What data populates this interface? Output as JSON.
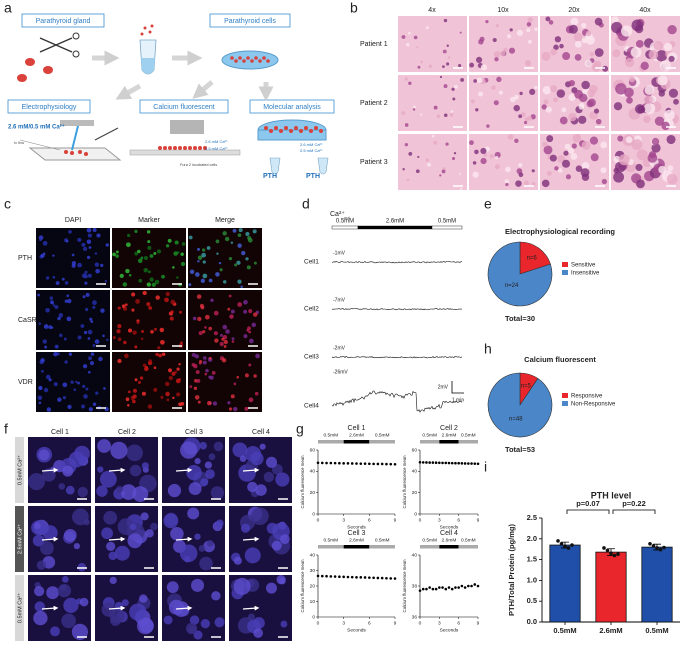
{
  "panels": {
    "a": {
      "letter": "a",
      "boxes": [
        "Parathyroid gland",
        "Parathyroid cells",
        "Electrophysiology",
        "Calcium fluorescent",
        "Molecular analysis"
      ],
      "protocol": "2.6 mM/0.5 mM Ca²⁺",
      "flow": "to flow",
      "calcium_conc": [
        "2.6 mM Ca²⁺",
        "0.5 mM Ca²⁺"
      ],
      "molecular_conc": [
        "2.6 mM Ca²⁺",
        "0.5 mM Ca²⁺"
      ],
      "cells_note": "Fura 2 incubated cells",
      "tubes": [
        "PTH",
        "PTH"
      ]
    },
    "b": {
      "letter": "b",
      "columns": [
        "4x",
        "10x",
        "20x",
        "40x"
      ],
      "rows": [
        "Patient 1",
        "Patient 2",
        "Patient 3"
      ]
    },
    "c": {
      "letter": "c",
      "columns": [
        "DAPI",
        "Marker",
        "Merge"
      ],
      "rows": [
        "PTH",
        "CaSR",
        "VDR"
      ]
    },
    "d": {
      "letter": "d",
      "stimulus_ion": "Ca²⁺",
      "stimulus_sub": "out",
      "stimulus": [
        "0.5mM",
        "2.6mM",
        "0.5mM"
      ],
      "cells": [
        "Cell1",
        "Cell2",
        "Cell3",
        "Cell4"
      ],
      "potentials": [
        "-1mV",
        "-7mV",
        "-2mV",
        "-26mV"
      ],
      "scale_v": "2mV",
      "scale_t": "1 min"
    },
    "e": {
      "letter": "e"
    },
    "h": {
      "letter": "h"
    },
    "f": {
      "letter": "f",
      "columns": [
        "Cell 1",
        "Cell 2",
        "Cell 3",
        "Cell 4"
      ],
      "rows": [
        "0.5mM Ca²⁺",
        "2.6mM Ca²⁺",
        "0.5mM Ca²⁺"
      ]
    },
    "g": {
      "letter": "g"
    },
    "i": {
      "letter": "i"
    }
  },
  "chart_data": [
    {
      "type": "pie",
      "title": "Electrophysiological recording",
      "categories": [
        "Sensitive",
        "Insensitive"
      ],
      "values": [
        6,
        24
      ],
      "value_labels": [
        "n=6",
        "n=24"
      ],
      "colors": [
        "#e8262b",
        "#4a86c8"
      ],
      "annotation": "Total=30",
      "legend": "upper right"
    },
    {
      "type": "pie",
      "title": "Calcium fluorescent",
      "categories": [
        "Responsive",
        "Non-Responsive"
      ],
      "values": [
        5,
        48
      ],
      "value_labels": [
        "n=5",
        "n=48"
      ],
      "colors": [
        "#e8262b",
        "#4a86c8"
      ],
      "annotation": "Total=53",
      "legend": "upper right"
    },
    {
      "type": "scatter",
      "title": "Cell 1",
      "stimulus": [
        "0.5mM",
        "2.6mM",
        "0.5mM"
      ],
      "color": "#000000",
      "x": [
        0,
        0.5,
        1,
        1.5,
        2,
        2.5,
        3,
        3.5,
        4,
        4.5,
        5,
        5.5,
        6,
        6.5,
        7,
        7.5,
        8,
        8.5,
        9
      ],
      "values": [
        48.0,
        47.9,
        47.8,
        47.8,
        47.7,
        47.6,
        47.5,
        47.5,
        47.4,
        47.3,
        47.2,
        47.2,
        47.1,
        47.0,
        46.9,
        46.9,
        46.8,
        46.7,
        46.6
      ],
      "xlim": [
        0,
        9
      ],
      "xticks": [
        0,
        3,
        6,
        9
      ],
      "ylim": [
        0,
        60
      ],
      "yticks": [
        0,
        20,
        40,
        60
      ],
      "x_label": "Seconds",
      "y_label": "Calcium  fluorescence mean"
    },
    {
      "type": "scatter",
      "title": "Cell 2",
      "stimulus": [
        "0.5mM",
        "2.6mM",
        "0.5mM"
      ],
      "color": "#000000",
      "x": [
        0,
        0.5,
        1,
        1.5,
        2,
        2.5,
        3,
        3.5,
        4,
        4.5,
        5,
        5.5,
        6,
        6.5,
        7,
        7.5,
        8,
        8.5,
        9
      ],
      "values": [
        48.5,
        48.4,
        48.3,
        48.2,
        48.2,
        48.1,
        48.0,
        47.9,
        47.9,
        47.8,
        47.7,
        47.6,
        47.6,
        47.5,
        47.4,
        47.3,
        47.3,
        47.2,
        47.1
      ],
      "xlim": [
        0,
        9
      ],
      "xticks": [
        0,
        3,
        6,
        9
      ],
      "ylim": [
        0,
        60
      ],
      "yticks": [
        0,
        20,
        40,
        60
      ],
      "x_label": "Seconds",
      "y_label": "Calcium  fluorescence mean"
    },
    {
      "type": "scatter",
      "title": "Cell 3",
      "stimulus": [
        "0.5mM",
        "2.6mM",
        "0.5mM"
      ],
      "color": "#000000",
      "x": [
        0,
        0.5,
        1,
        1.5,
        2,
        2.5,
        3,
        3.5,
        4,
        4.5,
        5,
        5.5,
        6,
        6.5,
        7,
        7.5,
        8,
        8.5,
        9
      ],
      "values": [
        26.5,
        26.4,
        26.3,
        26.2,
        26.1,
        26.0,
        25.9,
        25.8,
        25.7,
        25.6,
        25.6,
        25.5,
        25.4,
        25.3,
        25.2,
        25.1,
        25.0,
        24.9,
        24.8
      ],
      "xlim": [
        0,
        9
      ],
      "xticks": [
        0,
        3,
        6,
        9
      ],
      "ylim": [
        0,
        40
      ],
      "yticks": [
        0,
        10,
        20,
        30,
        40
      ],
      "x_label": "Seconds",
      "y_label": "Calcium  fluorescence mean"
    },
    {
      "type": "scatter",
      "title": "Cell 4",
      "stimulus": [
        "0.5mM",
        "2.6mM",
        "0.5mM"
      ],
      "color": "#000000",
      "x": [
        0,
        0.5,
        1,
        1.5,
        2,
        2.5,
        3,
        3.5,
        4,
        4.5,
        5,
        5.5,
        6,
        6.5,
        7,
        7.5,
        8,
        8.5,
        9
      ],
      "values": [
        37.7,
        37.8,
        37.8,
        37.9,
        37.8,
        37.8,
        37.9,
        37.9,
        37.8,
        37.9,
        37.8,
        37.9,
        37.9,
        38.0,
        37.9,
        38.0,
        38.0,
        38.1,
        38.0
      ],
      "xlim": [
        0,
        9
      ],
      "xticks": [
        0,
        3,
        6,
        9
      ],
      "ylim": [
        36,
        40
      ],
      "yticks": [
        36,
        38,
        40
      ],
      "x_label": "Seconds",
      "y_label": "Calcium  fluorescence mean"
    },
    {
      "type": "bar",
      "title": "PTH level",
      "categories": [
        "0.5mM",
        "2.6mM",
        "0.5mM"
      ],
      "values": [
        1.85,
        1.68,
        1.8
      ],
      "errors": [
        0.07,
        0.08,
        0.07
      ],
      "points": [
        [
          1.95,
          1.88,
          1.82,
          1.78,
          1.85
        ],
        [
          1.78,
          1.72,
          1.65,
          1.6,
          1.63
        ],
        [
          1.88,
          1.83,
          1.78,
          1.74,
          1.79
        ]
      ],
      "colors": [
        "#1f4fa8",
        "#e8262b",
        "#1f4fa8"
      ],
      "ylim": [
        0,
        2.5
      ],
      "yticks": [
        {
          "value": 0,
          "label": "0.0"
        },
        0.5,
        {
          "value": 1,
          "label": "1.0"
        },
        1.5,
        {
          "value": 2,
          "label": "2.0"
        },
        2.5
      ],
      "y_label": "PTH/Total Protein (pg/mg)",
      "annotations": [
        "p=0.07",
        "p=0.22"
      ]
    }
  ]
}
